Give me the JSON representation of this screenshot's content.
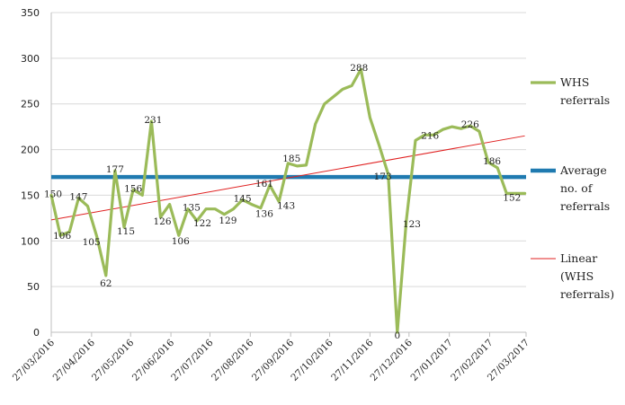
{
  "chart_data": {
    "type": "line",
    "title": "",
    "xlabel": "",
    "ylabel": "",
    "ylim": [
      0,
      350
    ],
    "yticks": [
      0,
      50,
      100,
      150,
      200,
      250,
      300,
      350
    ],
    "xticks": [
      "27/03/2016",
      "27/04/2016",
      "27/05/2016",
      "27/06/2016",
      "27/07/2016",
      "27/08/2016",
      "27/09/2016",
      "27/10/2016",
      "27/11/2016",
      "27/12/2016",
      "27/01/2017",
      "27/02/2017",
      "27/03/2017"
    ],
    "grid": "horizontal",
    "legend_position": "right",
    "series": [
      {
        "name": "WHS referrals",
        "color": "#9bbb59",
        "x": [
          "2016-03-27",
          "2016-04-03",
          "2016-04-10",
          "2016-04-17",
          "2016-04-24",
          "2016-05-01",
          "2016-05-08",
          "2016-05-15",
          "2016-05-22",
          "2016-05-29",
          "2016-06-05",
          "2016-06-12",
          "2016-06-19",
          "2016-06-26",
          "2016-07-03",
          "2016-07-10",
          "2016-07-17",
          "2016-07-24",
          "2016-07-31",
          "2016-08-07",
          "2016-08-14",
          "2016-08-21",
          "2016-08-28",
          "2016-09-04",
          "2016-09-11",
          "2016-09-18",
          "2016-09-25",
          "2016-10-02",
          "2016-10-09",
          "2016-10-16",
          "2016-10-23",
          "2016-10-30",
          "2016-11-06",
          "2016-11-13",
          "2016-11-20",
          "2016-11-27",
          "2016-12-04",
          "2016-12-11",
          "2016-12-18",
          "2016-12-25",
          "2017-01-01",
          "2017-01-08",
          "2017-01-15",
          "2017-01-22",
          "2017-01-29",
          "2017-02-05",
          "2017-02-12",
          "2017-02-19",
          "2017-02-26",
          "2017-03-05",
          "2017-03-12",
          "2017-03-19",
          "2017-03-26"
        ],
        "values": [
          150,
          106,
          110,
          147,
          138,
          105,
          62,
          177,
          115,
          156,
          150,
          231,
          126,
          140,
          106,
          135,
          122,
          135,
          135,
          129,
          135,
          145,
          140,
          136,
          161,
          143,
          185,
          182,
          183,
          228,
          250,
          258,
          266,
          270,
          288,
          235,
          205,
          173,
          0,
          123,
          210,
          216,
          216,
          222,
          225,
          223,
          226,
          220,
          186,
          180,
          152,
          152,
          152
        ],
        "labels": [
          {
            "i": 0,
            "text": "150"
          },
          {
            "i": 1,
            "text": "106"
          },
          {
            "i": 3,
            "text": "147"
          },
          {
            "i": 5,
            "text": "105"
          },
          {
            "i": 6,
            "text": "62"
          },
          {
            "i": 7,
            "text": "177"
          },
          {
            "i": 8,
            "text": "115"
          },
          {
            "i": 9,
            "text": "156"
          },
          {
            "i": 11,
            "text": "231"
          },
          {
            "i": 12,
            "text": "126"
          },
          {
            "i": 14,
            "text": "106"
          },
          {
            "i": 15,
            "text": "135"
          },
          {
            "i": 16,
            "text": "122"
          },
          {
            "i": 19,
            "text": "129"
          },
          {
            "i": 21,
            "text": "145"
          },
          {
            "i": 23,
            "text": "136"
          },
          {
            "i": 24,
            "text": "161"
          },
          {
            "i": 25,
            "text": "143"
          },
          {
            "i": 26,
            "text": "185"
          },
          {
            "i": 34,
            "text": "288"
          },
          {
            "i": 37,
            "text": "173"
          },
          {
            "i": 38,
            "text": "0"
          },
          {
            "i": 39,
            "text": "123"
          },
          {
            "i": 41,
            "text": "216"
          },
          {
            "i": 46,
            "text": "226"
          },
          {
            "i": 48,
            "text": "186"
          },
          {
            "i": 50,
            "text": "152"
          }
        ]
      },
      {
        "name": "Average no. of referrals",
        "color": "#1f7ab0",
        "values": [
          170
        ]
      },
      {
        "name": "Linear (WHS referrals)",
        "color": "#e02020",
        "trendline": {
          "x": [
            "2016-03-27",
            "2017-03-26"
          ],
          "values": [
            123,
            215
          ]
        }
      }
    ]
  }
}
